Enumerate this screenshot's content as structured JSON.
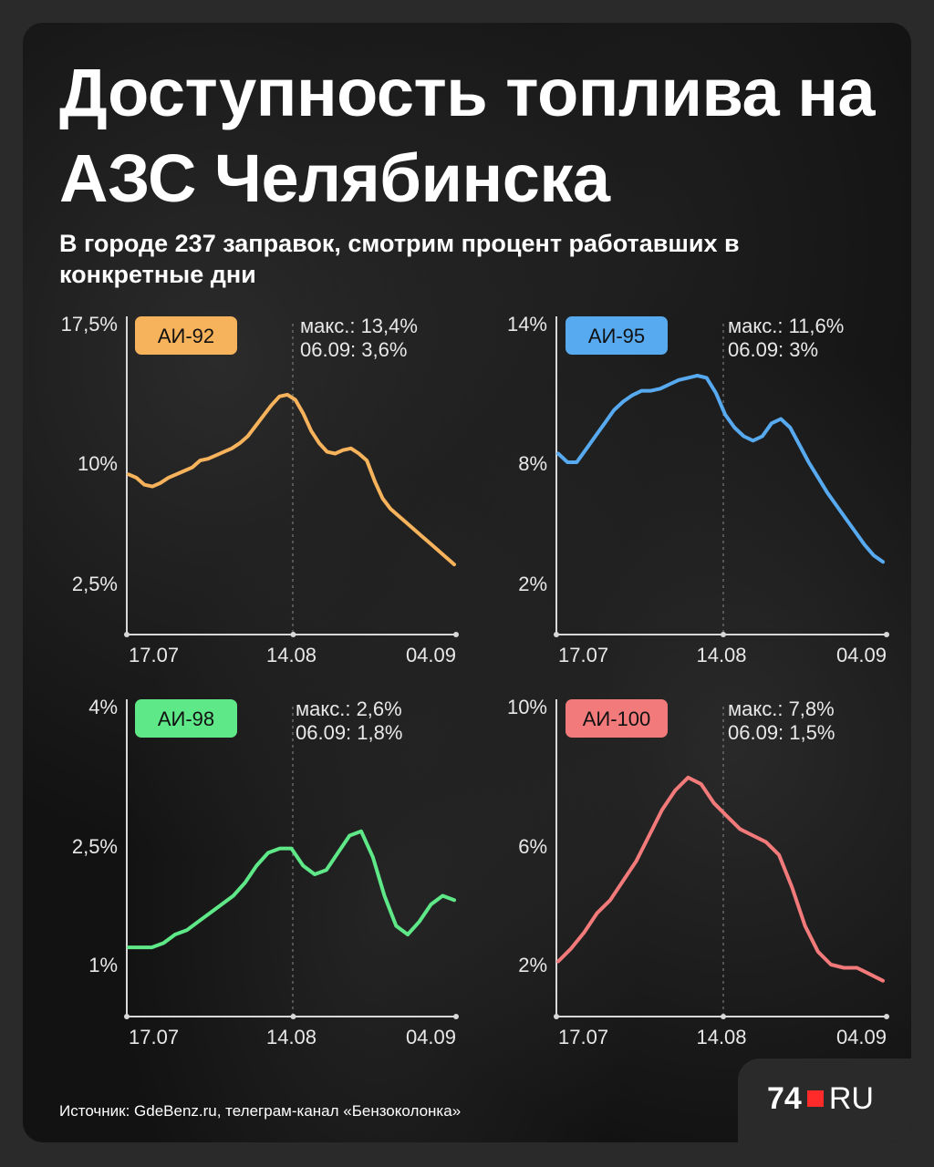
{
  "title": "Доступность топлива на АЗС Челябинска",
  "subtitle": "В городе 237 заправок, смотрим процент работавших в конкретные дни",
  "source": "Источник: GdeBenz.ru, телеграм-канал «Бензоколонка»",
  "logo": {
    "number": "74",
    "ru": "RU"
  },
  "chart_data": [
    {
      "type": "line",
      "name": "АИ-92",
      "color": "#f7b35c",
      "y_ticks": [
        "17,5%",
        "10%",
        "2,5%"
      ],
      "x_ticks": [
        "17.07",
        "14.08",
        "04.09"
      ],
      "notes": [
        "макс.: 13,4%",
        "06.09: 3,6%"
      ],
      "y": [
        8.8,
        8.6,
        8.2,
        8.1,
        8.3,
        8.6,
        8.8,
        9.0,
        9.2,
        9.6,
        9.7,
        9.9,
        10.1,
        10.3,
        10.6,
        11.0,
        11.6,
        12.2,
        12.8,
        13.3,
        13.4,
        13.1,
        12.3,
        11.3,
        10.6,
        10.1,
        10.0,
        10.2,
        10.3,
        10.0,
        9.6,
        8.4,
        7.4,
        6.8,
        6.4,
        6.0,
        5.6,
        5.2,
        4.8,
        4.4,
        4.0,
        3.6
      ]
    },
    {
      "type": "line",
      "name": "АИ-95",
      "color": "#57aaf0",
      "y_ticks": [
        "14%",
        "8%",
        "2%"
      ],
      "x_ticks": [
        "17.07",
        "14.08",
        "04.09"
      ],
      "notes": [
        "макс.: 11,6%",
        "06.09: 3%"
      ],
      "y": [
        8.0,
        7.6,
        7.6,
        8.2,
        8.8,
        9.4,
        10.0,
        10.4,
        10.7,
        10.9,
        10.9,
        11.0,
        11.2,
        11.4,
        11.5,
        11.6,
        11.5,
        10.8,
        9.8,
        9.2,
        8.8,
        8.6,
        8.8,
        9.4,
        9.6,
        9.2,
        8.4,
        7.6,
        6.9,
        6.2,
        5.6,
        5.0,
        4.4,
        3.8,
        3.3,
        3.0
      ]
    },
    {
      "type": "line",
      "name": "АИ-98",
      "color": "#5ee888",
      "y_ticks": [
        "4%",
        "2,5%",
        "1%"
      ],
      "x_ticks": [
        "17.07",
        "14.08",
        "04.09"
      ],
      "notes": [
        "макс.: 2,6%",
        "06.09: 1,8%"
      ],
      "y": [
        1.2,
        1.2,
        1.2,
        1.25,
        1.35,
        1.4,
        1.5,
        1.6,
        1.7,
        1.8,
        1.95,
        2.15,
        2.3,
        2.35,
        2.35,
        2.15,
        2.05,
        2.1,
        2.3,
        2.5,
        2.55,
        2.25,
        1.8,
        1.45,
        1.35,
        1.5,
        1.7,
        1.8,
        1.75
      ]
    },
    {
      "type": "line",
      "name": "АИ-100",
      "color": "#f27a7a",
      "y_ticks": [
        "10%",
        "6%",
        "2%"
      ],
      "x_ticks": [
        "17.07",
        "14.08",
        "04.09"
      ],
      "notes": [
        "макс.: 7,8%",
        "06.09: 1,5%"
      ],
      "y": [
        2.1,
        2.5,
        3.0,
        3.6,
        4.0,
        4.6,
        5.2,
        6.0,
        6.8,
        7.4,
        7.8,
        7.6,
        7.0,
        6.6,
        6.2,
        6.0,
        5.8,
        5.4,
        4.4,
        3.2,
        2.4,
        2.0,
        1.9,
        1.9,
        1.7,
        1.5
      ]
    }
  ]
}
